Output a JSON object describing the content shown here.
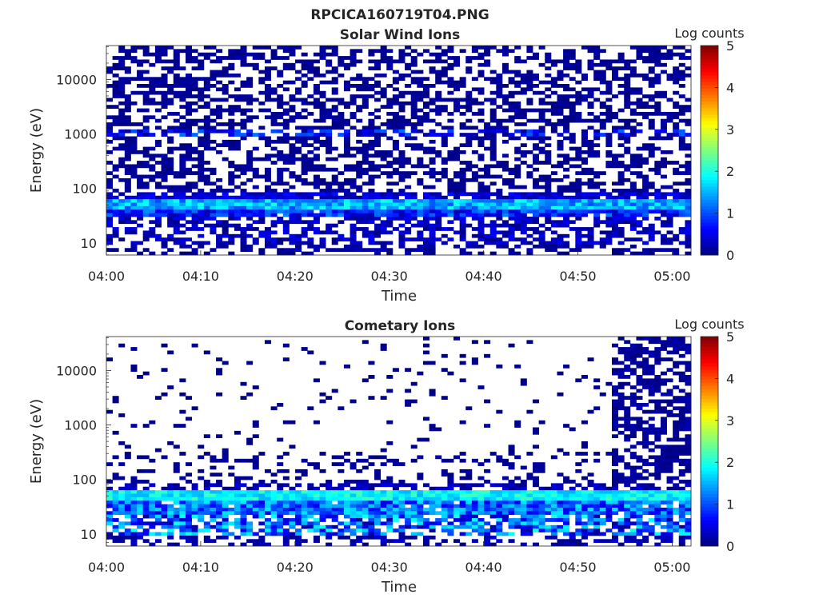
{
  "figure": {
    "title": "RPCICA160719T04.PNG"
  },
  "chart_data": [
    {
      "type": "heatmap",
      "title": "Solar Wind Ions",
      "xlabel": "Time",
      "ylabel": "Energy (eV)",
      "y_scale": "log",
      "y_range": [
        6,
        42000
      ],
      "x_range": [
        "04:00",
        "05:02"
      ],
      "x_ticks": [
        "04:00",
        "04:10",
        "04:20",
        "04:30",
        "04:40",
        "04:50",
        "05:00"
      ],
      "y_ticks": [
        "10",
        "100",
        "1000",
        "10000"
      ],
      "colorbar": {
        "title": "Log counts",
        "range": [
          0,
          5
        ],
        "ticks": [
          "0",
          "1",
          "2",
          "3",
          "4",
          "5"
        ],
        "colormap": "jet"
      },
      "bands": [
        {
          "e_min": 6,
          "e_max": 10,
          "fill": 0.45,
          "level_min": 0.0,
          "level_max": 0.3
        },
        {
          "e_min": 10,
          "e_max": 30,
          "fill": 0.55,
          "level_min": 0.0,
          "level_max": 0.6
        },
        {
          "e_min": 30,
          "e_max": 38,
          "fill": 0.95,
          "level_min": 0.2,
          "level_max": 1.3
        },
        {
          "e_min": 38,
          "e_max": 65,
          "fill": 1.0,
          "level_min": 1.0,
          "level_max": 2.0
        },
        {
          "e_min": 65,
          "e_max": 90,
          "fill": 0.85,
          "level_min": 0.1,
          "level_max": 0.7
        },
        {
          "e_min": 90,
          "e_max": 900,
          "fill": 0.5,
          "level_min": 0.0,
          "level_max": 0.2
        },
        {
          "e_min": 900,
          "e_max": 1300,
          "fill": 0.6,
          "level_min": 0.0,
          "level_max": 1.2
        },
        {
          "e_min": 1300,
          "e_max": 42000,
          "fill": 0.5,
          "level_min": 0.0,
          "level_max": 0.2
        }
      ]
    },
    {
      "type": "heatmap",
      "title": "Cometary Ions",
      "xlabel": "Time",
      "ylabel": "Energy (eV)",
      "y_scale": "log",
      "y_range": [
        6,
        42000
      ],
      "x_range": [
        "04:00",
        "05:02"
      ],
      "x_ticks": [
        "04:00",
        "04:10",
        "04:20",
        "04:30",
        "04:40",
        "04:50",
        "05:00"
      ],
      "y_ticks": [
        "10",
        "100",
        "1000",
        "10000"
      ],
      "colorbar": {
        "title": "Log counts",
        "range": [
          0,
          5
        ],
        "ticks": [
          "0",
          "1",
          "2",
          "3",
          "4",
          "5"
        ],
        "colormap": "jet"
      },
      "late_onset": "04:53",
      "bands": [
        {
          "e_min": 6,
          "e_max": 10,
          "fill": 0.4,
          "level_min": 0.0,
          "level_max": 0.4
        },
        {
          "e_min": 10,
          "e_max": 24,
          "fill": 0.7,
          "level_min": 0.1,
          "level_max": 2.0
        },
        {
          "e_min": 24,
          "e_max": 38,
          "fill": 0.95,
          "level_min": 0.5,
          "level_max": 1.8
        },
        {
          "e_min": 38,
          "e_max": 62,
          "fill": 1.0,
          "level_min": 1.5,
          "level_max": 2.2
        },
        {
          "e_min": 62,
          "e_max": 90,
          "fill": 0.6,
          "level_min": 0.0,
          "level_max": 0.5
        },
        {
          "e_min": 90,
          "e_max": 300,
          "fill": 0.25,
          "level_min": 0.0,
          "level_max": 0.2
        },
        {
          "e_min": 300,
          "e_max": 42000,
          "fill": 0.05,
          "level_min": 0.0,
          "level_max": 0.1
        }
      ]
    }
  ]
}
